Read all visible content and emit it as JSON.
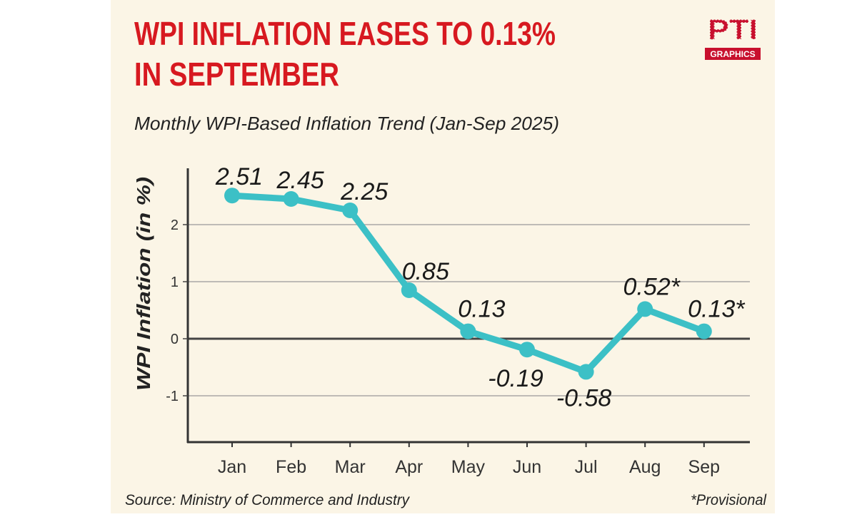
{
  "title_line1": "WPI INFLATION EASES TO 0.13%",
  "title_line2": "IN SEPTEMBER",
  "subtitle": "Monthly WPI-Based Inflation Trend (Jan-Sep 2025)",
  "logo": {
    "mark": "PTI",
    "tag": "GRAPHICS"
  },
  "source": "Source: Ministry of Commerce and Industry",
  "footnote": "*Provisional",
  "colors": {
    "title": "#d71920",
    "line": "#3cc0c6",
    "background": "#fbf5e6",
    "axis": "#333333"
  },
  "chart_data": {
    "type": "line",
    "title": "Monthly WPI-Based Inflation Trend (Jan-Sep 2025)",
    "xlabel": "",
    "ylabel": "WPI Inflation (in %)",
    "categories": [
      "Jan",
      "Feb",
      "Mar",
      "Apr",
      "May",
      "Jun",
      "Jul",
      "Aug",
      "Sep"
    ],
    "values": [
      2.51,
      2.45,
      2.25,
      0.85,
      0.13,
      -0.19,
      -0.58,
      0.52,
      0.13
    ],
    "data_labels": [
      "2.51",
      "2.45",
      "2.25",
      "0.85",
      "0.13",
      "-0.19",
      "-0.58",
      "0.52*",
      "0.13*"
    ],
    "yticks": [
      2,
      1,
      0,
      -1
    ],
    "ytick_labels": [
      "2",
      "1",
      "0",
      "-1"
    ],
    "ylim": [
      -1.8,
      2.9
    ],
    "grid": true,
    "legend": "none"
  }
}
